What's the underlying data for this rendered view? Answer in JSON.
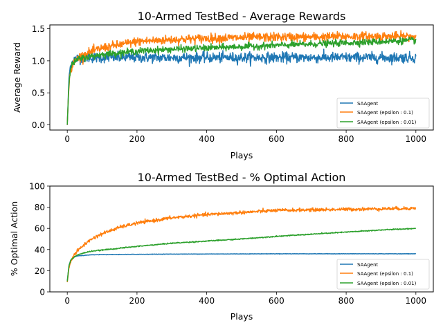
{
  "chart_data": [
    {
      "type": "line",
      "title": "10-Armed TestBed - Average Rewards",
      "xlabel": "Plays",
      "ylabel": "Average Reward",
      "xlim": [
        -50,
        1050
      ],
      "ylim": [
        -0.08,
        1.56
      ],
      "xticks": [
        0,
        200,
        400,
        600,
        800,
        1000
      ],
      "xtick_labels": [
        "0",
        "200",
        "400",
        "600",
        "800",
        "1000"
      ],
      "yticks": [
        0.0,
        0.5,
        1.0,
        1.5
      ],
      "ytick_labels": [
        "0.0",
        "0.5",
        "1.0",
        "1.5"
      ],
      "grid": false,
      "legend_position": "lower-right",
      "n_points": 1000,
      "series": [
        {
          "name": "SAAgent",
          "color": "#1f77b4",
          "x": [
            0,
            5,
            10,
            20,
            30,
            50,
            100,
            200,
            300,
            400,
            500,
            600,
            700,
            800,
            900,
            1000
          ],
          "values": [
            0.0,
            0.75,
            0.95,
            1.02,
            1.04,
            1.05,
            1.05,
            1.05,
            1.05,
            1.05,
            1.05,
            1.05,
            1.05,
            1.05,
            1.05,
            1.05
          ],
          "noise": 0.04
        },
        {
          "name": "SAAgent (epsilon : 0.1)",
          "color": "#ff7f0e",
          "x": [
            0,
            5,
            10,
            20,
            30,
            50,
            100,
            200,
            300,
            400,
            500,
            600,
            700,
            800,
            900,
            1000
          ],
          "values": [
            0.0,
            0.65,
            0.85,
            0.98,
            1.04,
            1.1,
            1.2,
            1.3,
            1.33,
            1.35,
            1.36,
            1.37,
            1.37,
            1.38,
            1.38,
            1.38
          ],
          "noise": 0.035
        },
        {
          "name": "SAAgent (epsilon : 0.01)",
          "color": "#2ca02c",
          "x": [
            0,
            5,
            10,
            20,
            30,
            50,
            100,
            200,
            300,
            400,
            500,
            600,
            700,
            800,
            900,
            1000
          ],
          "values": [
            0.0,
            0.7,
            0.9,
            0.98,
            1.02,
            1.05,
            1.1,
            1.15,
            1.18,
            1.2,
            1.22,
            1.24,
            1.26,
            1.28,
            1.3,
            1.32
          ],
          "noise": 0.025
        }
      ]
    },
    {
      "type": "line",
      "title": "10-Armed TestBed - % Optimal Action",
      "xlabel": "Plays",
      "ylabel": "% Optimal Action",
      "xlim": [
        -50,
        1050
      ],
      "ylim": [
        0,
        100
      ],
      "xticks": [
        0,
        200,
        400,
        600,
        800,
        1000
      ],
      "xtick_labels": [
        "0",
        "200",
        "400",
        "600",
        "800",
        "1000"
      ],
      "yticks": [
        0,
        20,
        40,
        60,
        80,
        100
      ],
      "ytick_labels": [
        "0",
        "20",
        "40",
        "60",
        "80",
        "100"
      ],
      "grid": false,
      "legend_position": "lower-right",
      "n_points": 1000,
      "series": [
        {
          "name": "SAAgent",
          "color": "#1f77b4",
          "x": [
            0,
            5,
            10,
            20,
            30,
            50,
            70,
            100,
            200,
            300,
            400,
            500,
            600,
            700,
            800,
            900,
            1000
          ],
          "values": [
            10,
            25,
            30,
            33,
            34,
            34.5,
            35,
            35.2,
            35.5,
            35.7,
            35.8,
            35.9,
            36,
            36,
            36,
            36,
            36
          ],
          "noise": 0.1
        },
        {
          "name": "SAAgent (epsilon : 0.1)",
          "color": "#ff7f0e",
          "x": [
            0,
            5,
            10,
            20,
            30,
            50,
            70,
            100,
            150,
            200,
            300,
            400,
            500,
            600,
            700,
            800,
            900,
            1000
          ],
          "values": [
            9,
            23,
            29,
            35,
            39,
            45,
            50,
            55,
            61,
            65,
            70,
            73,
            75,
            77,
            77.5,
            78,
            78.5,
            79
          ],
          "noise": 0.8
        },
        {
          "name": "SAAgent (epsilon : 0.01)",
          "color": "#2ca02c",
          "x": [
            0,
            5,
            10,
            20,
            30,
            50,
            70,
            100,
            200,
            300,
            400,
            500,
            600,
            700,
            800,
            900,
            1000
          ],
          "values": [
            10,
            25,
            30,
            33,
            35,
            37,
            38.5,
            39.5,
            43,
            46,
            48,
            50,
            52.5,
            54.5,
            56.5,
            58.5,
            60
          ],
          "noise": 0.25
        }
      ]
    }
  ]
}
